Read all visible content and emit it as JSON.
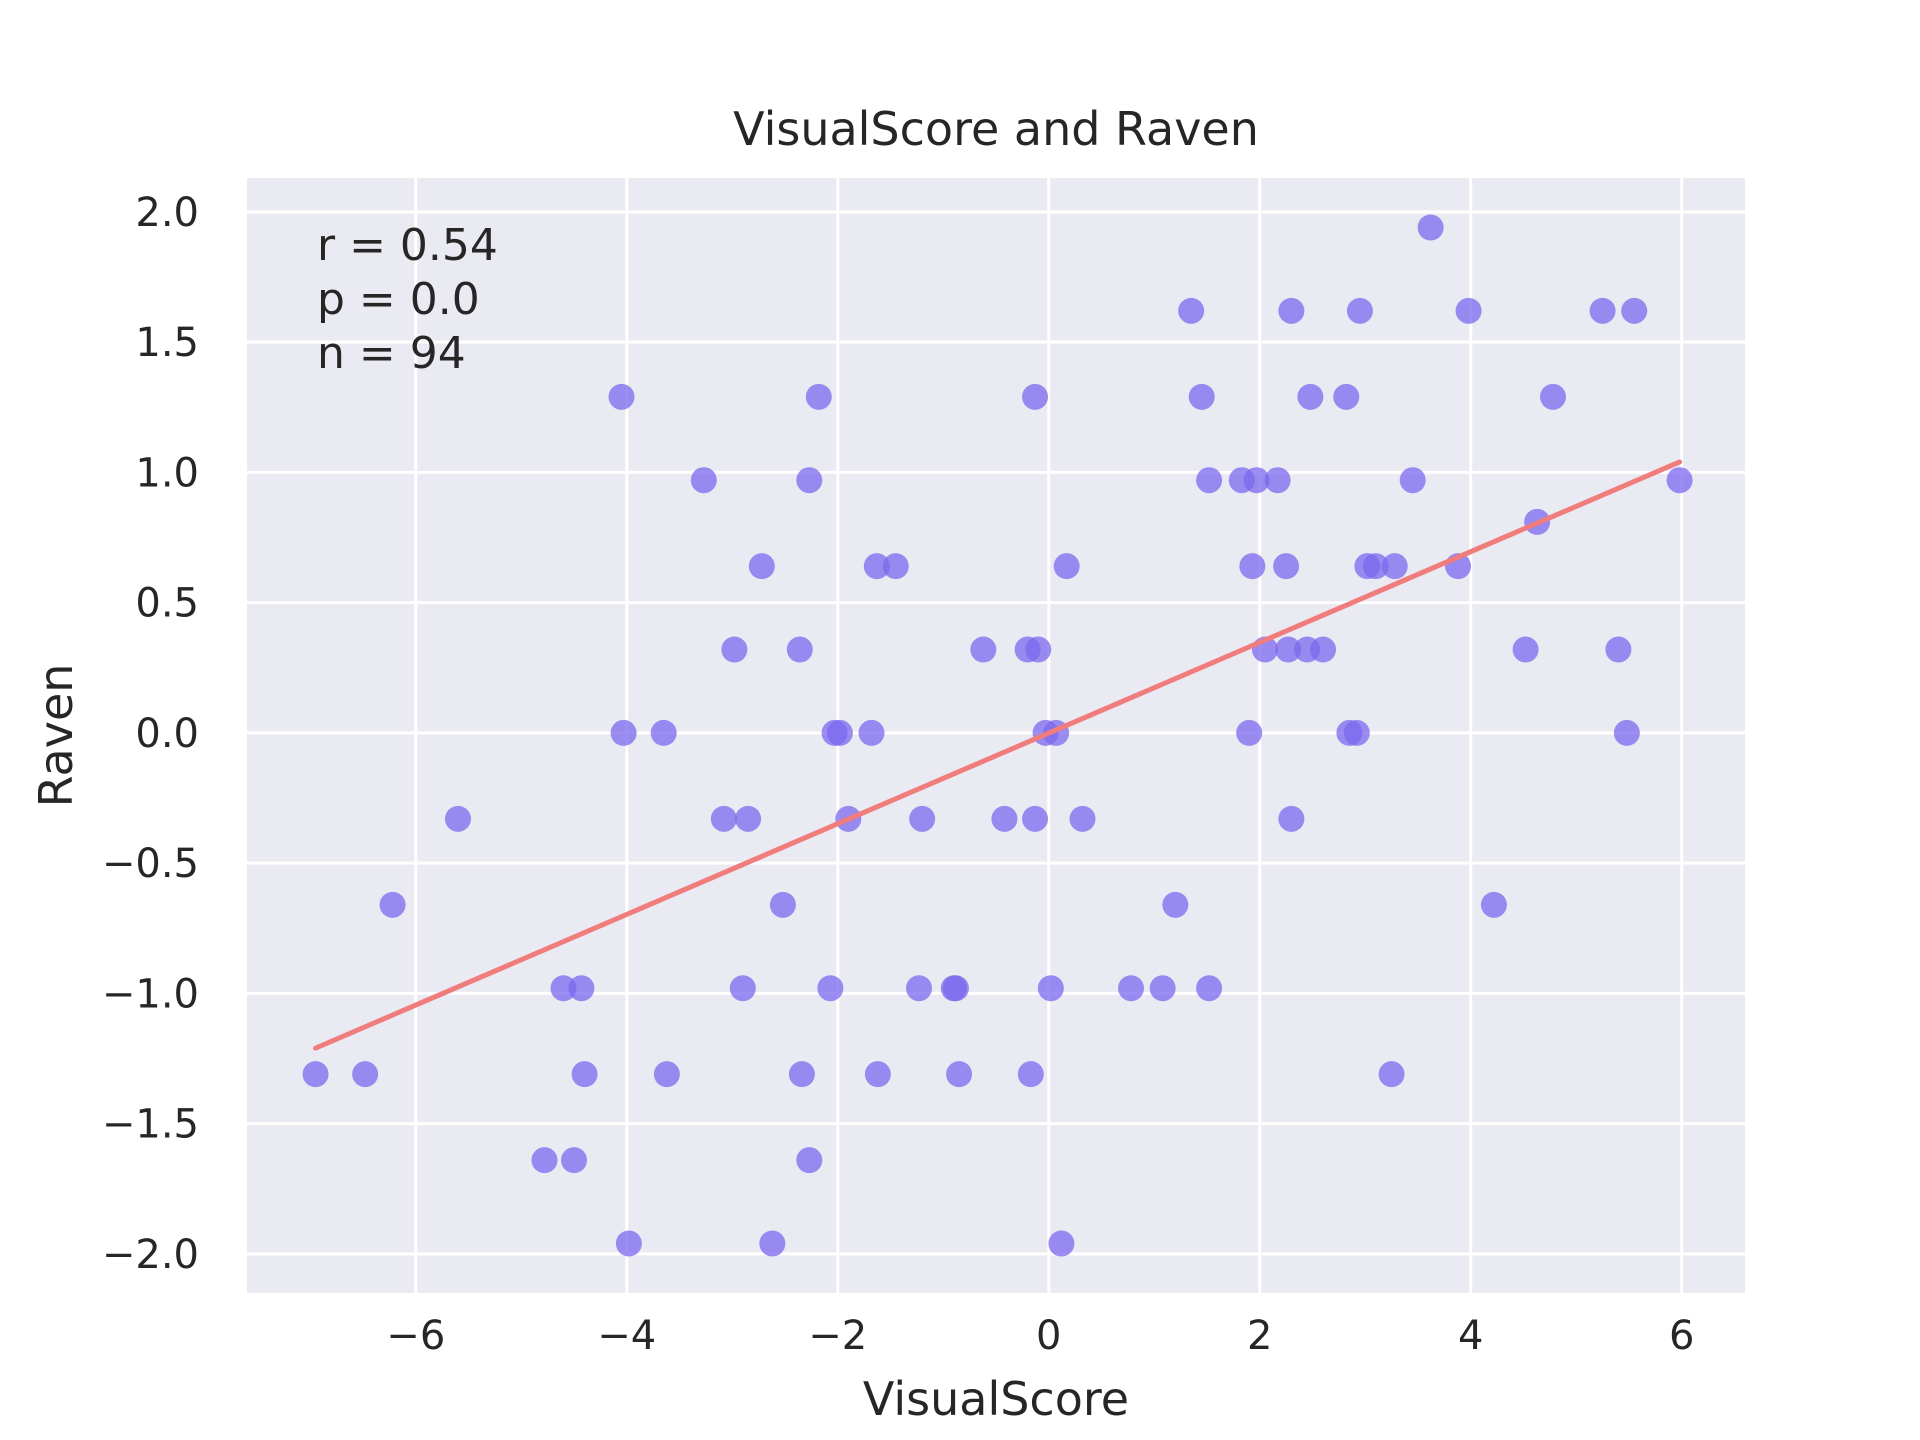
{
  "chart_data": {
    "type": "scatter",
    "title": "VisualScore and Raven",
    "xlabel": "VisualScore",
    "ylabel": "Raven",
    "xlim": [
      -7.6,
      6.6
    ],
    "ylim": [
      -2.15,
      2.13
    ],
    "x_ticks": [
      -6,
      -4,
      -2,
      0,
      2,
      4,
      6
    ],
    "y_ticks": [
      -2.0,
      -1.5,
      -1.0,
      -0.5,
      0.0,
      0.5,
      1.0,
      1.5,
      2.0
    ],
    "x_tick_labels": [
      "−6",
      "−4",
      "−2",
      "0",
      "2",
      "4",
      "6"
    ],
    "y_tick_labels": [
      "−2.0",
      "−1.5",
      "−1.0",
      "−0.5",
      "0.0",
      "0.5",
      "1.0",
      "1.5",
      "2.0"
    ],
    "grid": true,
    "annotations": [
      "r = 0.54",
      "p = 0.0",
      "n = 94"
    ],
    "point_color": "#7b68ee",
    "line_color": "#f07c7c",
    "background_color": "#eaeaf2",
    "regression_line": {
      "x": [
        -6.95,
        5.98
      ],
      "y": [
        -1.21,
        1.04
      ]
    },
    "points": [
      {
        "x": 3.62,
        "y": 1.94
      },
      {
        "x": 1.35,
        "y": 1.62
      },
      {
        "x": 2.3,
        "y": 1.62
      },
      {
        "x": 2.95,
        "y": 1.62
      },
      {
        "x": 3.98,
        "y": 1.62
      },
      {
        "x": 5.25,
        "y": 1.62
      },
      {
        "x": 5.55,
        "y": 1.62
      },
      {
        "x": -4.05,
        "y": 1.29
      },
      {
        "x": -2.18,
        "y": 1.29
      },
      {
        "x": -0.13,
        "y": 1.29
      },
      {
        "x": 1.45,
        "y": 1.29
      },
      {
        "x": 2.48,
        "y": 1.29
      },
      {
        "x": 2.82,
        "y": 1.29
      },
      {
        "x": 4.78,
        "y": 1.29
      },
      {
        "x": -3.27,
        "y": 0.97
      },
      {
        "x": -2.27,
        "y": 0.97
      },
      {
        "x": 1.52,
        "y": 0.97
      },
      {
        "x": 1.83,
        "y": 0.97
      },
      {
        "x": 1.97,
        "y": 0.97
      },
      {
        "x": 2.17,
        "y": 0.97
      },
      {
        "x": 3.45,
        "y": 0.97
      },
      {
        "x": 5.98,
        "y": 0.97
      },
      {
        "x": 4.63,
        "y": 0.81
      },
      {
        "x": -2.72,
        "y": 0.64
      },
      {
        "x": -1.63,
        "y": 0.64
      },
      {
        "x": -1.45,
        "y": 0.64
      },
      {
        "x": 0.17,
        "y": 0.64
      },
      {
        "x": 1.93,
        "y": 0.64
      },
      {
        "x": 2.25,
        "y": 0.64
      },
      {
        "x": 3.02,
        "y": 0.64
      },
      {
        "x": 3.1,
        "y": 0.64
      },
      {
        "x": 3.28,
        "y": 0.64
      },
      {
        "x": 3.88,
        "y": 0.64
      },
      {
        "x": -2.98,
        "y": 0.32
      },
      {
        "x": -2.36,
        "y": 0.32
      },
      {
        "x": -0.62,
        "y": 0.32
      },
      {
        "x": -0.2,
        "y": 0.32
      },
      {
        "x": -0.1,
        "y": 0.32
      },
      {
        "x": 2.05,
        "y": 0.32
      },
      {
        "x": 2.27,
        "y": 0.32
      },
      {
        "x": 2.45,
        "y": 0.32
      },
      {
        "x": 2.6,
        "y": 0.32
      },
      {
        "x": 4.52,
        "y": 0.32
      },
      {
        "x": 5.4,
        "y": 0.32
      },
      {
        "x": -4.03,
        "y": 0.0
      },
      {
        "x": -3.65,
        "y": 0.0
      },
      {
        "x": -2.03,
        "y": 0.0
      },
      {
        "x": -1.98,
        "y": 0.0
      },
      {
        "x": -1.68,
        "y": 0.0
      },
      {
        "x": -0.03,
        "y": 0.0
      },
      {
        "x": 0.07,
        "y": 0.0
      },
      {
        "x": 1.9,
        "y": 0.0
      },
      {
        "x": 2.85,
        "y": 0.0
      },
      {
        "x": 2.92,
        "y": 0.0
      },
      {
        "x": 5.48,
        "y": 0.0
      },
      {
        "x": -5.6,
        "y": -0.33
      },
      {
        "x": -3.08,
        "y": -0.33
      },
      {
        "x": -2.85,
        "y": -0.33
      },
      {
        "x": -1.9,
        "y": -0.33
      },
      {
        "x": -1.2,
        "y": -0.33
      },
      {
        "x": -0.42,
        "y": -0.33
      },
      {
        "x": -0.13,
        "y": -0.33
      },
      {
        "x": 0.32,
        "y": -0.33
      },
      {
        "x": 2.3,
        "y": -0.33
      },
      {
        "x": -6.22,
        "y": -0.66
      },
      {
        "x": -2.52,
        "y": -0.66
      },
      {
        "x": 1.2,
        "y": -0.66
      },
      {
        "x": 4.22,
        "y": -0.66
      },
      {
        "x": -4.6,
        "y": -0.98
      },
      {
        "x": -4.43,
        "y": -0.98
      },
      {
        "x": -2.9,
        "y": -0.98
      },
      {
        "x": -2.07,
        "y": -0.98
      },
      {
        "x": -1.23,
        "y": -0.98
      },
      {
        "x": -0.9,
        "y": -0.98
      },
      {
        "x": -0.88,
        "y": -0.98
      },
      {
        "x": 0.02,
        "y": -0.98
      },
      {
        "x": 0.78,
        "y": -0.98
      },
      {
        "x": 1.08,
        "y": -0.98
      },
      {
        "x": 1.52,
        "y": -0.98
      },
      {
        "x": -6.95,
        "y": -1.31
      },
      {
        "x": -6.48,
        "y": -1.31
      },
      {
        "x": -4.4,
        "y": -1.31
      },
      {
        "x": -3.62,
        "y": -1.31
      },
      {
        "x": -2.34,
        "y": -1.31
      },
      {
        "x": -1.62,
        "y": -1.31
      },
      {
        "x": -0.85,
        "y": -1.31
      },
      {
        "x": -0.17,
        "y": -1.31
      },
      {
        "x": 3.25,
        "y": -1.31
      },
      {
        "x": -4.78,
        "y": -1.64
      },
      {
        "x": -4.5,
        "y": -1.64
      },
      {
        "x": -2.27,
        "y": -1.64
      },
      {
        "x": -3.98,
        "y": -1.96
      },
      {
        "x": -2.62,
        "y": -1.96
      },
      {
        "x": 0.12,
        "y": -1.96
      }
    ]
  }
}
